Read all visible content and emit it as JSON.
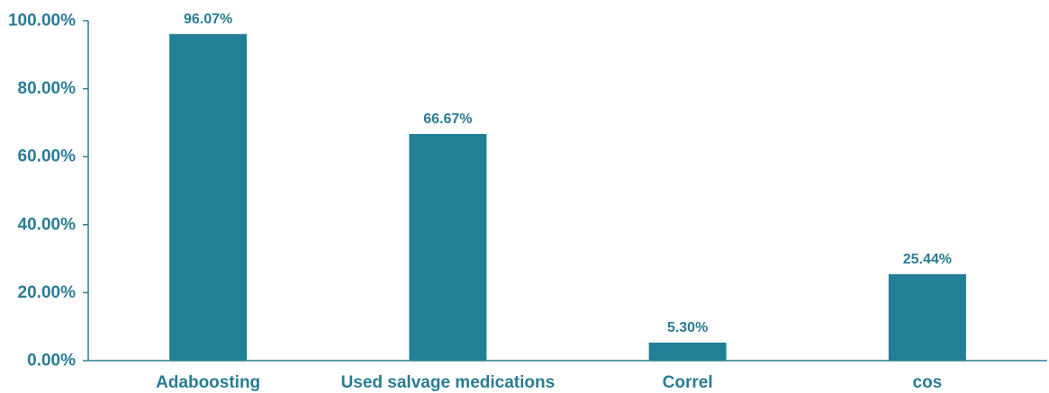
{
  "chart_data": {
    "type": "bar",
    "categories": [
      "Adaboosting",
      "Used salvage medications",
      "Correl",
      "cos"
    ],
    "values": [
      96.07,
      66.67,
      5.3,
      25.44
    ],
    "data_labels": [
      "96.07%",
      "66.67%",
      "5.30%",
      "25.44%"
    ],
    "title": "",
    "xlabel": "",
    "ylabel": "",
    "ylim": [
      0,
      100
    ],
    "yticks": [
      0,
      20,
      40,
      60,
      80,
      100
    ],
    "ytick_labels": [
      "0.00%",
      "20.00%",
      "40.00%",
      "60.00%",
      "80.00%",
      "100.00%"
    ],
    "grid": false,
    "legend": "none",
    "colors": {
      "bar": "#217f98",
      "text": "#2a7c95",
      "axis": "#2a7c95"
    }
  }
}
